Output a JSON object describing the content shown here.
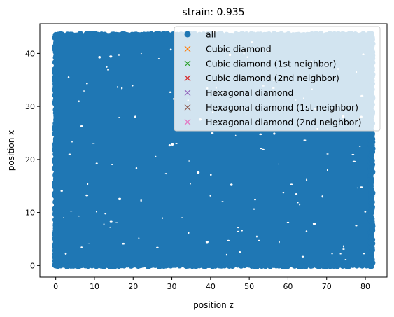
{
  "chart_data": {
    "type": "scatter",
    "title": "strain: 0.935",
    "xlabel": "position z",
    "ylabel": "position x",
    "xlim": [
      -4.1,
      85.6
    ],
    "ylim": [
      -2.2,
      45.6
    ],
    "xticks": [
      0,
      10,
      20,
      30,
      40,
      50,
      60,
      70,
      80
    ],
    "yticks": [
      0,
      10,
      20,
      30,
      40
    ],
    "grid": false,
    "legend_position": "top-right",
    "points_region": {
      "x_min": 0,
      "x_max": 81.6,
      "y_min": 0,
      "y_max": 43.5
    },
    "series": [
      {
        "name": "all",
        "marker": "circle",
        "color": "#1f77b4",
        "count_shown": "dense"
      },
      {
        "name": "Cubic diamond",
        "marker": "x",
        "color": "#ff7f0e",
        "values": []
      },
      {
        "name": "Cubic diamond (1st neighbor)",
        "marker": "x",
        "color": "#2ca02c",
        "values": []
      },
      {
        "name": "Cubic diamond (2nd neighbor)",
        "marker": "x",
        "color": "#d62728",
        "values": []
      },
      {
        "name": "Hexagonal diamond",
        "marker": "x",
        "color": "#9467bd",
        "values": []
      },
      {
        "name": "Hexagonal diamond (1st neighbor)",
        "marker": "x",
        "color": "#8c564b",
        "values": []
      },
      {
        "name": "Hexagonal diamond (2nd neighbor)",
        "marker": "x",
        "color": "#e377c2",
        "values": []
      }
    ]
  }
}
